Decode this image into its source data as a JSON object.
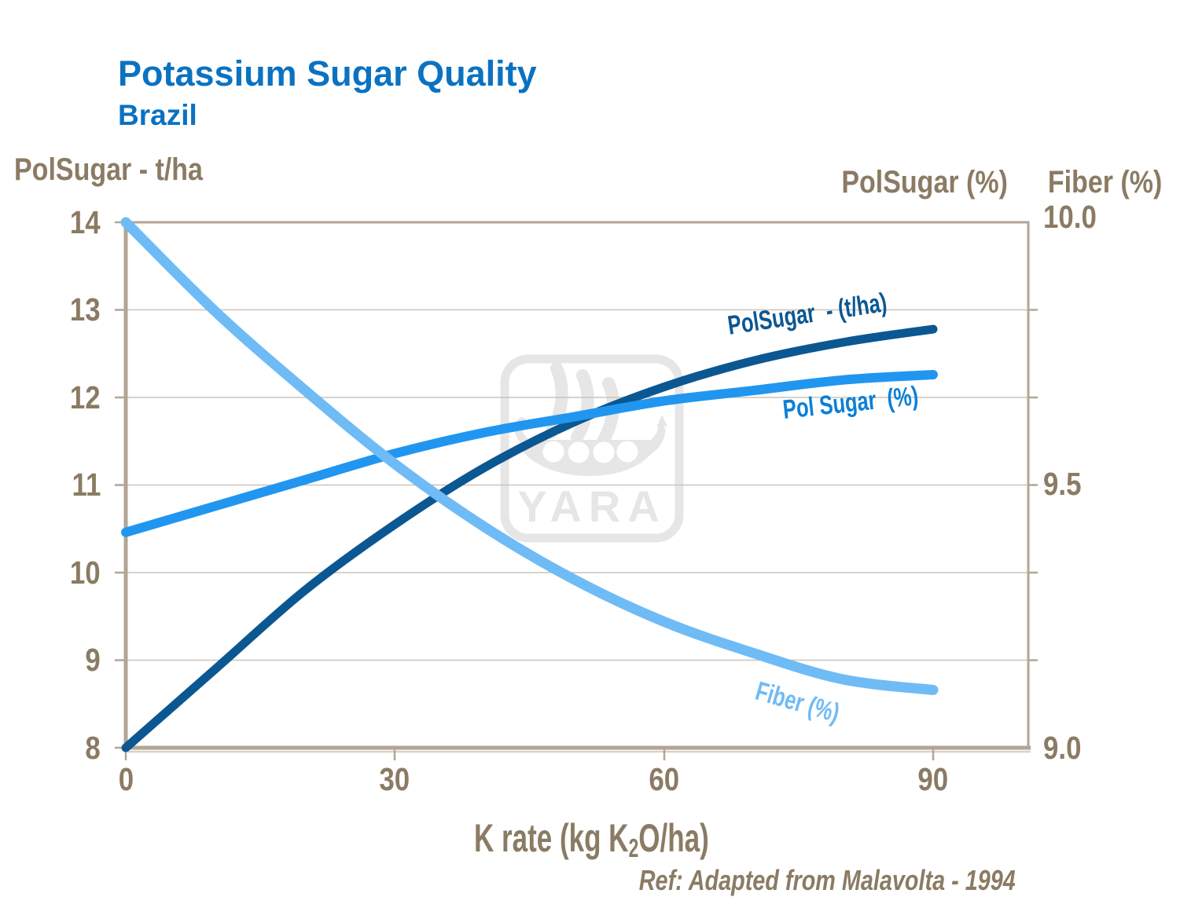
{
  "page": {
    "title": "Potassium Sugar Quality",
    "subtitle": "Brazil"
  },
  "axes": {
    "left_title": "PolSugar - t/ha",
    "right_title_polsugar": "PolSugar (%)",
    "right_title_fiber": "Fiber (%)",
    "x_title_pre": "K rate (kg K",
    "x_title_sub": "2",
    "x_title_post": "O/ha)",
    "left_ticks": [
      "14",
      "13",
      "12",
      "11",
      "10",
      "9",
      "8"
    ],
    "right_ticks": [
      "10.0",
      "9.5",
      "9.0"
    ],
    "x_ticks": [
      "0",
      "30",
      "60",
      "90"
    ]
  },
  "curve_labels": {
    "polsugar_tha": "PolSugar  - (t/ha)",
    "polsugar_pct": "Pol Sugar  (%)",
    "fiber": "Fiber (%)"
  },
  "footnote": "Ref: Adapted from Malavolta - 1994",
  "watermark": {
    "text": "YARA"
  },
  "colors": {
    "title_blue": "#0b72c2",
    "axis_text": "#8b7b64",
    "axis_line": "#b3a595",
    "gridline": "#ccc3b7",
    "polsugar_tha_curve": "#0b5792",
    "polsugar_pct_curve": "#2196f0",
    "polsugar_pct_label": "#0a80d8",
    "fiber_curve": "#6fbbf5",
    "watermark": "#e6e6e6"
  },
  "chart_data": {
    "type": "line",
    "title": "Potassium Sugar Quality - Brazil",
    "xlabel": "K rate (kg K₂O/ha)",
    "x_ticks": [
      0,
      30,
      60,
      90
    ],
    "y_left_axis": {
      "label": "PolSugar - t/ha",
      "min": 8,
      "max": 14,
      "ticks": [
        8,
        9,
        10,
        11,
        12,
        13,
        14
      ]
    },
    "y_right_axis": {
      "labels": [
        "PolSugar (%)",
        "Fiber (%)"
      ],
      "min": 9.0,
      "max": 10.0,
      "ticks": [
        9.0,
        9.5,
        10.0
      ]
    },
    "grid": "horizontal",
    "legend": "labels-next-to-curves",
    "series": [
      {
        "name": "PolSugar - (t/ha)",
        "axis": "left",
        "color": "#0b5792",
        "x": [
          0,
          10,
          20,
          30,
          40,
          50,
          60,
          70,
          80,
          90
        ],
        "values": [
          8.0,
          8.9,
          9.8,
          10.55,
          11.2,
          11.72,
          12.12,
          12.42,
          12.63,
          12.78
        ]
      },
      {
        "name": "Pol Sugar (%)",
        "axis": "right",
        "color": "#2196f0",
        "x": [
          0,
          10,
          20,
          30,
          40,
          50,
          60,
          70,
          80,
          90
        ],
        "values": [
          9.41,
          9.46,
          9.51,
          9.56,
          9.6,
          9.63,
          9.66,
          9.68,
          9.7,
          9.71
        ]
      },
      {
        "name": "Fiber (%)",
        "axis": "right",
        "color": "#6fbbf5",
        "x": [
          0,
          10,
          20,
          30,
          40,
          50,
          60,
          70,
          80,
          90
        ],
        "values": [
          10.0,
          9.83,
          9.68,
          9.54,
          9.42,
          9.32,
          9.24,
          9.18,
          9.13,
          9.11
        ]
      }
    ],
    "footnote": "Ref: Adapted from Malavolta - 1994"
  }
}
